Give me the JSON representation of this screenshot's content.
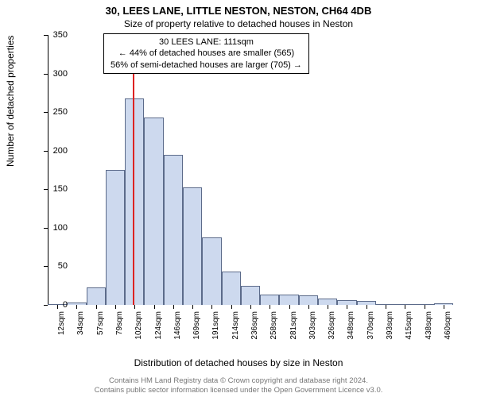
{
  "title_main": "30, LEES LANE, LITTLE NESTON, NESTON, CH64 4DB",
  "title_sub": "Size of property relative to detached houses in Neston",
  "annotation": {
    "line1": "30 LEES LANE: 111sqm",
    "line2": "← 44% of detached houses are smaller (565)",
    "line3": "56% of semi-detached houses are larger (705) →"
  },
  "ylabel": "Number of detached properties",
  "xlabel": "Distribution of detached houses by size in Neston",
  "footer1": "Contains HM Land Registry data © Crown copyright and database right 2024.",
  "footer2": "Contains public sector information licensed under the Open Government Licence v3.0.",
  "chart": {
    "type": "histogram",
    "ylim": [
      0,
      350
    ],
    "ytick_step": 50,
    "yticks": [
      0,
      50,
      100,
      150,
      200,
      250,
      300,
      350
    ],
    "xticks": [
      "12sqm",
      "34sqm",
      "57sqm",
      "79sqm",
      "102sqm",
      "124sqm",
      "146sqm",
      "169sqm",
      "191sqm",
      "214sqm",
      "236sqm",
      "258sqm",
      "281sqm",
      "303sqm",
      "326sqm",
      "348sqm",
      "370sqm",
      "393sqm",
      "415sqm",
      "438sqm",
      "460sqm"
    ],
    "values": [
      0,
      3,
      23,
      175,
      268,
      243,
      195,
      152,
      88,
      43,
      25,
      13,
      13,
      12,
      8,
      6,
      5,
      0,
      0,
      0,
      2
    ],
    "bar_fill": "#cdd9ee",
    "bar_stroke": "#5c6b8a",
    "bar_width_ratio": 1.0,
    "background_color": "#ffffff",
    "vline_x_index": 4.4,
    "vline_color": "#d22",
    "axis_color": "#000000",
    "title_fontsize": 13,
    "subtitle_fontsize": 12,
    "label_fontsize": 12,
    "tick_fontsize": 11,
    "xtick_fontsize": 10,
    "footer_fontsize": 9.5,
    "footer_color": "#777777"
  }
}
